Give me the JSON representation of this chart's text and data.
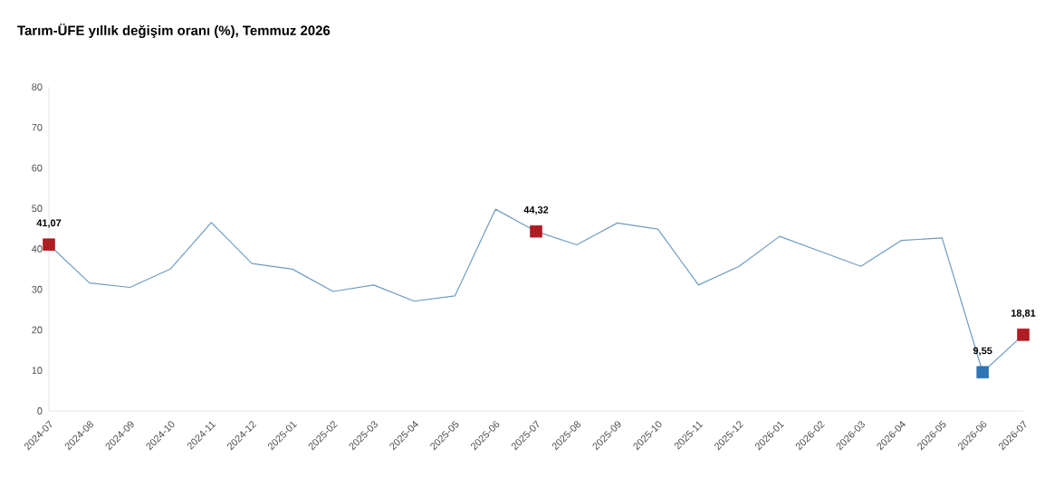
{
  "chart_data": {
    "type": "line",
    "title": "Tarım-ÜFE yıllık değişim oranı (%), Temmuz 2026",
    "categories": [
      "2024-07",
      "2024-08",
      "2024-09",
      "2024-10",
      "2024-11",
      "2024-12",
      "2025-01",
      "2025-02",
      "2025-03",
      "2025-04",
      "2025-05",
      "2025-06",
      "2025-07",
      "2025-08",
      "2025-09",
      "2025-10",
      "2025-11",
      "2025-12",
      "2026-01",
      "2026-02",
      "2026-03",
      "2026-04",
      "2026-05",
      "2026-06",
      "2026-07"
    ],
    "series": [
      {
        "color": "#6e9cc2",
        "marker": "none",
        "values": [
          41.07,
          31.6,
          30.5,
          35.1,
          46.5,
          36.4,
          35.0,
          29.5,
          31.1,
          27.1,
          28.4,
          49.8,
          44.32,
          41.0,
          46.4,
          44.9,
          31.1,
          35.7,
          43.1,
          39.4,
          35.7,
          42.1,
          42.7,
          9.55,
          18.81
        ]
      },
      {
        "type": "scatter",
        "marker": "square",
        "colors": [
          "#b01c24",
          null,
          null,
          null,
          null,
          null,
          null,
          null,
          null,
          null,
          null,
          null,
          "#b01c24",
          null,
          null,
          null,
          null,
          null,
          null,
          null,
          null,
          null,
          null,
          "#2e75b6",
          "#b01c24"
        ],
        "values": [
          41.07,
          null,
          null,
          null,
          null,
          null,
          null,
          null,
          null,
          null,
          null,
          null,
          44.32,
          null,
          null,
          null,
          null,
          null,
          null,
          null,
          null,
          null,
          null,
          9.55,
          18.81
        ],
        "value_labels": [
          "41,07",
          null,
          null,
          null,
          null,
          null,
          null,
          null,
          null,
          null,
          null,
          null,
          "44,32",
          null,
          null,
          null,
          null,
          null,
          null,
          null,
          null,
          null,
          null,
          "9,55",
          "18,81"
        ]
      }
    ],
    "ylim": [
      0,
      80
    ],
    "yticks": [
      0,
      10,
      20,
      30,
      40,
      50,
      60,
      70,
      80
    ],
    "grid": false
  }
}
